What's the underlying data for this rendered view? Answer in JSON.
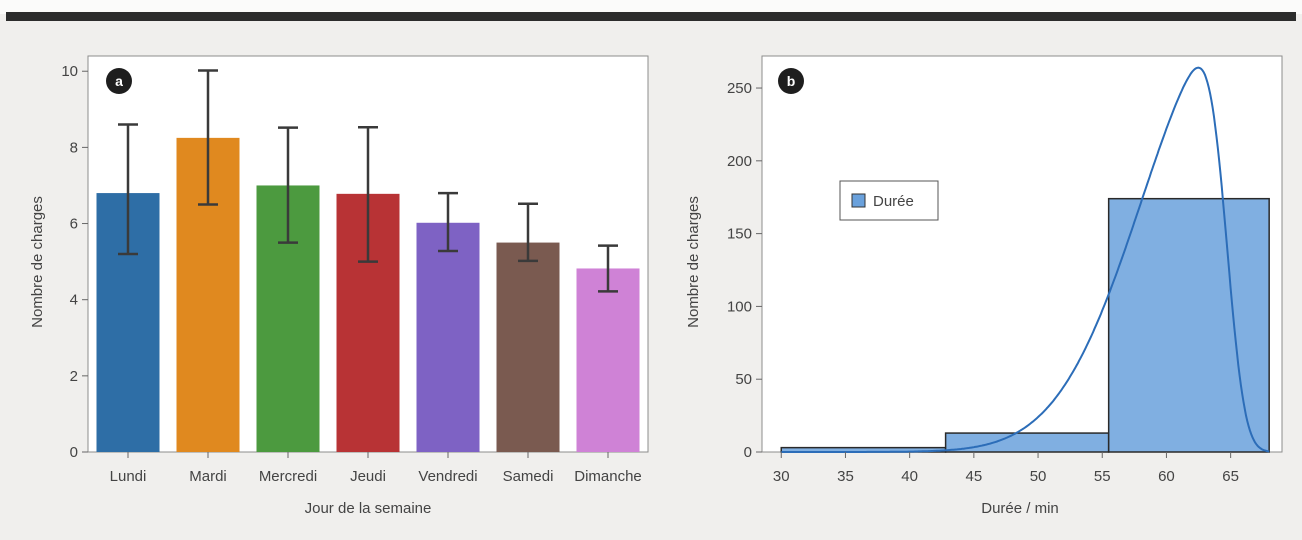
{
  "chart_data": [
    {
      "type": "bar",
      "panel_label": "a",
      "categories": [
        "Lundi",
        "Mardi",
        "Mercredi",
        "Jeudi",
        "Vendredi",
        "Samedi",
        "Dimanche"
      ],
      "values": [
        6.8,
        8.25,
        7.0,
        6.78,
        6.02,
        5.5,
        4.82
      ],
      "error_low": [
        5.2,
        6.5,
        5.5,
        5.0,
        5.28,
        5.02,
        4.22
      ],
      "error_high": [
        8.6,
        10.02,
        8.52,
        8.53,
        6.8,
        6.52,
        5.42
      ],
      "colors": [
        "#2e6ea6",
        "#e0891f",
        "#4c9a3f",
        "#b83335",
        "#7e62c4",
        "#7a5a50",
        "#cf82d6"
      ],
      "xlabel": "Jour de la semaine",
      "ylabel": "Nombre de charges",
      "ylim": [
        0,
        10.4
      ],
      "yticks": [
        "0",
        "2",
        "4",
        "6",
        "8",
        "10"
      ],
      "ytick_values": [
        0,
        2,
        4,
        6,
        8,
        10
      ]
    },
    {
      "type": "bar",
      "subtype": "histogram",
      "panel_label": "b",
      "bins": [
        [
          30,
          42.8
        ],
        [
          42.8,
          55.5
        ],
        [
          55.5,
          68
        ]
      ],
      "values": [
        3,
        13,
        174
      ],
      "fill": "#6aa1dc",
      "curve_color": "#2c6db8",
      "curve": {
        "type": "skew-normal",
        "amplitude": 264,
        "xi": 64.7,
        "omega": 6.6,
        "alpha": -5.9
      },
      "legend": {
        "label": "Durée",
        "position": "left"
      },
      "xlabel": "Durée / min",
      "ylabel": "Nombre de charges",
      "xlim": [
        28.5,
        69
      ],
      "ylim": [
        0,
        272
      ],
      "xticks": [
        "30",
        "35",
        "40",
        "45",
        "50",
        "55",
        "60",
        "65"
      ],
      "xtick_values": [
        30,
        35,
        40,
        45,
        50,
        55,
        60,
        65
      ],
      "yticks": [
        "0",
        "50",
        "100",
        "150",
        "200",
        "250"
      ],
      "ytick_values": [
        0,
        50,
        100,
        150,
        200,
        250
      ]
    }
  ]
}
